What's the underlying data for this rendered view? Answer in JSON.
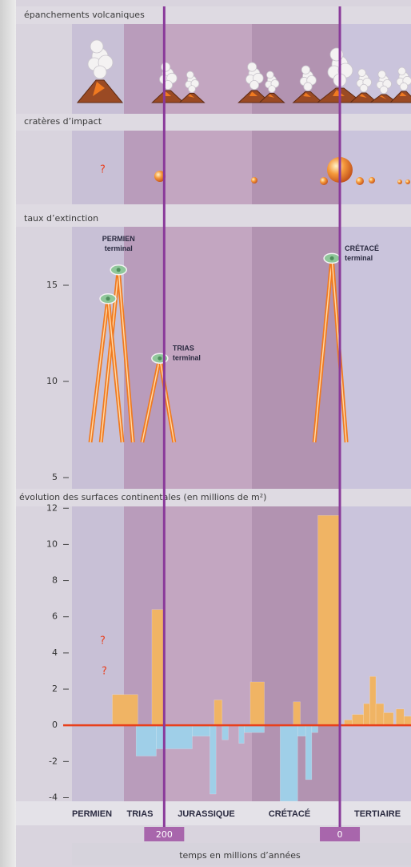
{
  "chart_data": [
    {
      "type": "illustration",
      "title": "épanchements volcaniques"
    },
    {
      "type": "illustration",
      "title": "cratères d’impact",
      "annotations": [
        "?"
      ]
    },
    {
      "type": "scatter",
      "title": "taux d’extinction",
      "x": [
        252,
        264,
        205,
        9
      ],
      "values": [
        15.8,
        14.3,
        11.2,
        16.4
      ],
      "point_labels": [
        [
          "PERMIEN",
          "terminal"
        ],
        null,
        [
          "TRIAS",
          "terminal"
        ],
        [
          "CRÉTACÉ",
          "terminal"
        ]
      ],
      "color": "#8fc79a",
      "line_color": "#f07a20",
      "xlim": [
        305,
        -81
      ],
      "ylim": [
        4.5,
        18
      ],
      "yticks": [
        5,
        10,
        15
      ]
    },
    {
      "type": "bar",
      "title": "évolution des surfaces continentales (en millions de m²)",
      "xlabel": "temps en millions d’années",
      "periods": [
        "PERMIEN",
        "TRIAS",
        "JURASSIQUE",
        "CRÉTACÉ",
        "TERTIAIRE"
      ],
      "annotations": [
        "?",
        "?"
      ],
      "series": [
        {
          "color": "#f0b464",
          "x0": [
            259,
            214,
            143,
            102,
            53,
            25,
            -5,
            -14,
            -27,
            -34,
            -41,
            -50,
            -64,
            -73
          ],
          "x1": [
            230,
            200,
            134,
            86,
            45,
            0,
            -14,
            -27,
            -34,
            -41,
            -50,
            -61,
            -73,
            -81
          ],
          "values": [
            1.7,
            6.4,
            1.4,
            2.4,
            1.3,
            11.6,
            0.3,
            0.6,
            1.2,
            2.7,
            1.2,
            0.7,
            0.9,
            0.5
          ]
        },
        {
          "color": "#9fcfe8",
          "x0": [
            232,
            209,
            168,
            148,
            134,
            115,
            109,
            68,
            48,
            39,
            32
          ],
          "x1": [
            209,
            168,
            148,
            141,
            127,
            109,
            86,
            48,
            39,
            32,
            25
          ],
          "values": [
            -1.7,
            -1.3,
            -0.6,
            -3.8,
            -0.8,
            -1.0,
            -0.4,
            -4.2,
            -0.6,
            -3.0,
            -0.4
          ]
        }
      ],
      "zero_line_color": "#e8401c",
      "xlim": [
        305,
        -81
      ],
      "xticks": [
        200,
        0
      ],
      "ylim": [
        -4.2,
        12.1
      ],
      "yticks": [
        12,
        10,
        8,
        6,
        4,
        2,
        0,
        -2,
        -4
      ]
    }
  ]
}
